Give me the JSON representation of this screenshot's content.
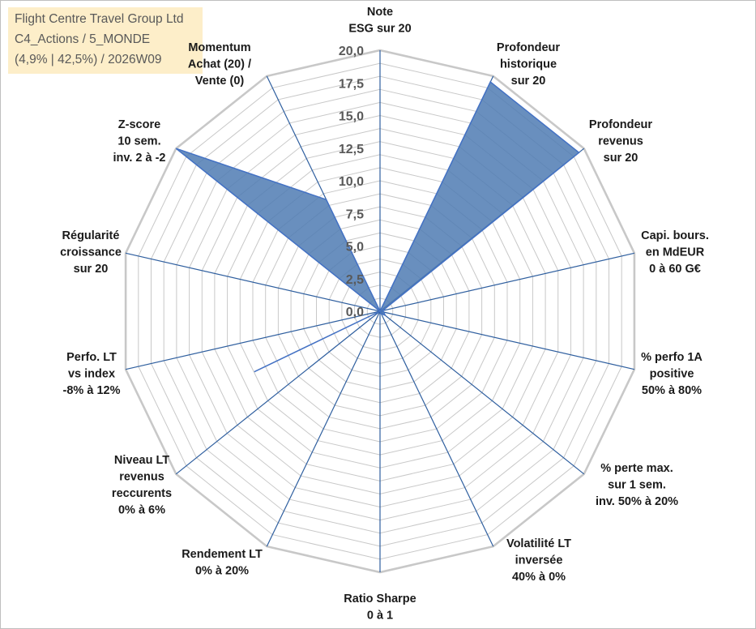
{
  "info": {
    "line1": "Flight Centre Travel Group Ltd",
    "line2": "C4_Actions / 5_MONDE",
    "line3": "(4,9% | 42,5%) / 2026W09"
  },
  "chart_data": {
    "type": "radar",
    "rmax": 20,
    "ticks": [
      "0,0",
      "2,5",
      "5,0",
      "7,5",
      "10,0",
      "12,5",
      "15,0",
      "17,5",
      "20,0"
    ],
    "axes": [
      {
        "label": [
          "Note",
          "ESG sur 20"
        ],
        "value": 0
      },
      {
        "label": [
          "Profondeur",
          "historique",
          "sur 20"
        ],
        "value": 19.5
      },
      {
        "label": [
          "Profondeur",
          "revenus",
          "sur 20"
        ],
        "value": 19.5
      },
      {
        "label": [
          "Capi. bours.",
          "en MdEUR",
          "0 à 60 G€"
        ],
        "value": 0.2
      },
      {
        "label": [
          "% perfo 1A",
          "positive",
          "50% à 80%"
        ],
        "value": 0.3
      },
      {
        "label": [
          "% perte max.",
          "sur 1 sem.",
          "inv. 50% à 20%"
        ],
        "value": 0.5
      },
      {
        "label": [
          "Volatilité LT",
          "inversée",
          "40% à 0%"
        ],
        "value": 0.2
      },
      {
        "label": [
          "Ratio Sharpe",
          "0 à 1"
        ],
        "value": 0
      },
      {
        "label": [
          "Rendement LT",
          "0% à 20%"
        ],
        "value": 0
      },
      {
        "label": [
          "Niveau LT",
          "revenus",
          "reccurents",
          "0% à 6%"
        ],
        "value": 0
      },
      {
        "label": [
          "Perfo. LT",
          "vs index",
          "-8% à 12%"
        ],
        "value": 0
      },
      {
        "label": [
          "Régularité",
          "croissance",
          "sur 20"
        ],
        "value": 0
      },
      {
        "label": [
          "Z-score",
          "10 sem.",
          "inv. 2 à -2"
        ],
        "value": 20
      },
      {
        "label": [
          "Momentum",
          "Achat (20) /",
          "Vente (0)"
        ],
        "value": 9.5
      }
    ],
    "extra_vertex": {
      "axis_between": [
        9,
        10
      ],
      "value": 10.7
    },
    "fill_color": "#4f7bb3",
    "line_color": "#4472c4",
    "grid_color": "#c8c8c8"
  }
}
